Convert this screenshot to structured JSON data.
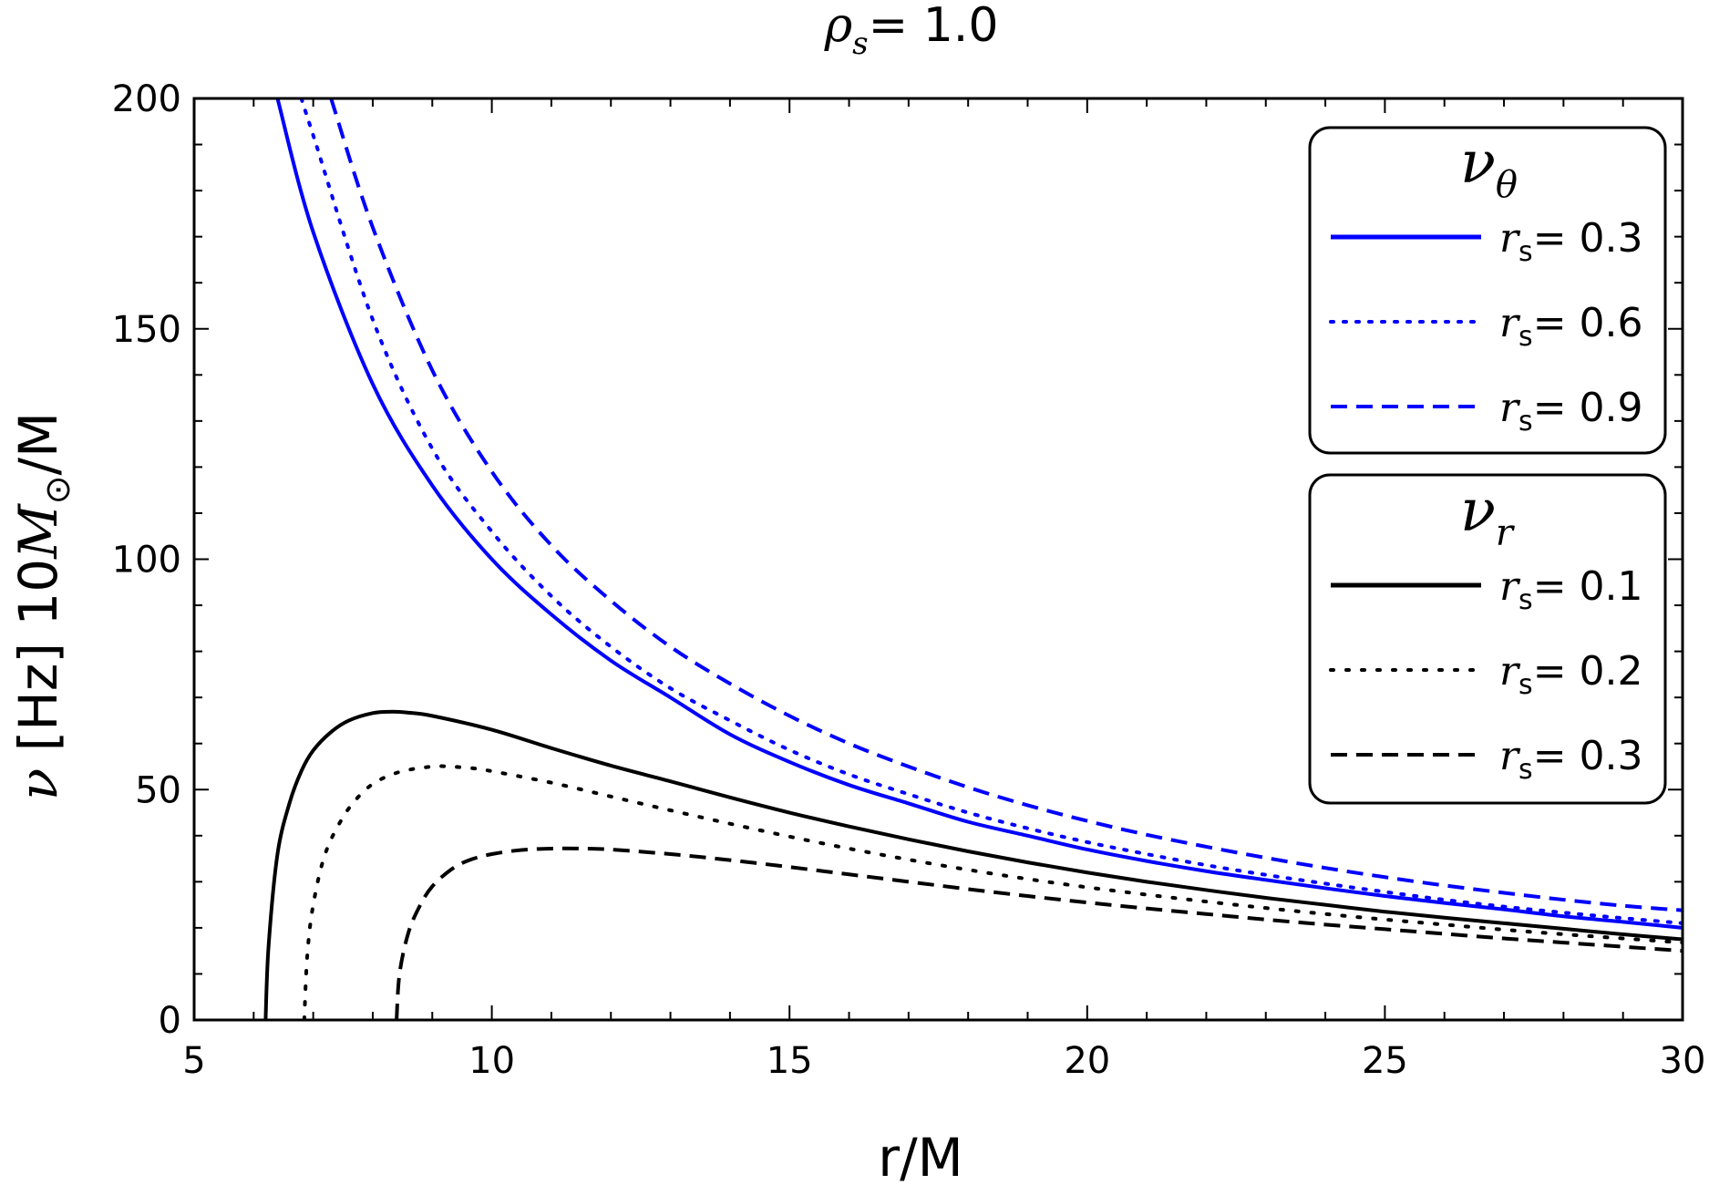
{
  "chart_data": {
    "type": "line",
    "title": {
      "symbol": "ρ",
      "subscript": "s",
      "text": "= 1.0"
    },
    "xlabel": "r/M",
    "ylabel": {
      "symbol": "ν",
      "text_a": " [Hz] 10",
      "mass_symbol": "M",
      "mass_subscript": "⊙",
      "text_b": "/M"
    },
    "xlim": [
      5,
      30
    ],
    "ylim": [
      0,
      200
    ],
    "xticks": [
      5,
      10,
      15,
      20,
      25,
      30
    ],
    "yticks": [
      0,
      50,
      100,
      150,
      200
    ],
    "grid": false,
    "colors": {
      "theta": "#0000ff",
      "radial": "#000000"
    },
    "legends": [
      {
        "title_symbol": "ν",
        "title_subscript": "θ",
        "entries": [
          {
            "prefix": "r",
            "sub": "s",
            "value": "= 0.3",
            "style": "solid"
          },
          {
            "prefix": "r",
            "sub": "s",
            "value": "= 0.6",
            "style": "dotted"
          },
          {
            "prefix": "r",
            "sub": "s",
            "value": "= 0.9",
            "style": "dashed"
          }
        ]
      },
      {
        "title_symbol": "ν",
        "title_subscript": "r",
        "entries": [
          {
            "prefix": "r",
            "sub": "s",
            "value": "= 0.1",
            "style": "solid"
          },
          {
            "prefix": "r",
            "sub": "s",
            "value": "= 0.2",
            "style": "dotted"
          },
          {
            "prefix": "r",
            "sub": "s",
            "value": "= 0.3",
            "style": "dashed"
          }
        ]
      }
    ],
    "series": [
      {
        "name": "ν_θ, r_s = 0.3",
        "group": "theta",
        "style": "solid",
        "x": [
          6.4,
          7,
          8,
          9,
          10,
          11,
          12,
          13,
          14,
          15,
          16,
          17,
          18,
          19,
          20,
          21,
          22,
          23,
          24,
          25,
          26,
          27,
          28,
          29,
          30
        ],
        "y": [
          200,
          171,
          138,
          116,
          100,
          88,
          78,
          70,
          62,
          56,
          51,
          47,
          43,
          40,
          37,
          34.5,
          32.3,
          30.4,
          28.6,
          26.9,
          25.4,
          24,
          22.5,
          21.3,
          20
        ]
      },
      {
        "name": "ν_θ, r_s = 0.6",
        "group": "theta",
        "style": "dotted",
        "x": [
          6.8,
          7,
          8,
          9,
          10,
          11,
          12,
          13,
          14,
          15,
          16,
          17,
          18,
          19,
          20,
          21,
          22,
          23,
          24,
          25,
          26,
          27,
          28,
          29,
          30
        ],
        "y": [
          200,
          192,
          152,
          124,
          106,
          92,
          81,
          72,
          65,
          58.6,
          53.3,
          49,
          45,
          41.6,
          38.6,
          36,
          33.6,
          31.5,
          29.6,
          27.8,
          26.1,
          24.6,
          23.3,
          22.1,
          21
        ]
      },
      {
        "name": "ν_θ, r_s = 0.9",
        "group": "theta",
        "style": "dashed",
        "x": [
          7.3,
          8,
          9,
          10,
          11,
          12,
          13,
          14,
          15,
          16,
          17,
          18,
          19,
          20,
          21,
          22,
          23,
          24,
          25,
          26,
          27,
          28,
          29,
          30
        ],
        "y": [
          200,
          172,
          141,
          119,
          103,
          91,
          81,
          73,
          66,
          60,
          55,
          50.5,
          46.6,
          43.2,
          40.2,
          37.6,
          35.2,
          33,
          31,
          29.2,
          27.6,
          26.1,
          24.8,
          23.8
        ]
      },
      {
        "name": "ν_r, r_s = 0.1",
        "group": "radial",
        "style": "solid",
        "x": [
          6.2,
          6.25,
          6.4,
          6.6,
          6.8,
          7,
          7.3,
          7.6,
          8,
          8.3,
          8.6,
          9,
          10,
          11,
          12,
          13,
          14,
          15,
          16,
          17,
          18,
          19,
          20,
          21,
          22,
          23,
          24,
          25,
          26,
          27,
          28,
          29,
          30
        ],
        "y": [
          0,
          16,
          36,
          47,
          54,
          58.5,
          62.5,
          65,
          66.6,
          66.9,
          66.7,
          66,
          63,
          59,
          55.2,
          51.8,
          48.3,
          45,
          42,
          39.2,
          36.6,
          34.2,
          32,
          30,
          28.2,
          26.5,
          25,
          23.5,
          22.2,
          21,
          19.8,
          18.6,
          17.5
        ]
      },
      {
        "name": "ν_r, r_s = 0.2",
        "group": "radial",
        "style": "dotted",
        "x": [
          6.85,
          6.9,
          7,
          7.2,
          7.5,
          7.8,
          8.1,
          8.5,
          9,
          9.3,
          9.7,
          10,
          11,
          12,
          13,
          14,
          15,
          16,
          17,
          18,
          19,
          20,
          21,
          22,
          23,
          24,
          25,
          26,
          27,
          28,
          29,
          30
        ],
        "y": [
          0,
          14,
          25,
          36,
          44,
          49,
          52,
          54,
          55,
          55,
          54.6,
          54,
          51.5,
          48.5,
          45.5,
          42.6,
          39.8,
          37.2,
          34.8,
          32.6,
          30.6,
          28.8,
          27.2,
          25.7,
          24.3,
          23,
          21.8,
          20.7,
          19.6,
          18.6,
          17.7,
          16.8
        ]
      },
      {
        "name": "ν_r, r_s = 0.3",
        "group": "radial",
        "style": "dashed",
        "x": [
          8.4,
          8.45,
          8.6,
          8.8,
          9,
          9.3,
          9.6,
          10,
          10.5,
          11,
          11.5,
          12,
          13,
          14,
          15,
          16,
          17,
          18,
          19,
          20,
          21,
          22,
          23,
          24,
          25,
          26,
          27,
          28,
          29,
          30
        ],
        "y": [
          0,
          10,
          19,
          25,
          29,
          32.5,
          34.6,
          36,
          36.9,
          37.2,
          37.2,
          37,
          36,
          34.7,
          33.2,
          31.6,
          30,
          28.4,
          26.9,
          25.5,
          24.2,
          23,
          21.8,
          20.7,
          19.7,
          18.7,
          17.7,
          16.8,
          15.9,
          15
        ]
      }
    ]
  }
}
